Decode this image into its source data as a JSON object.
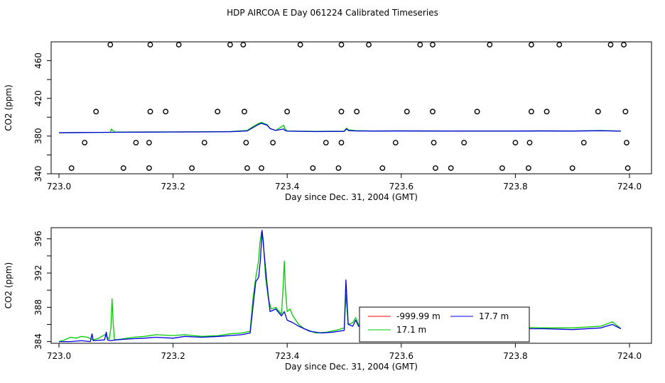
{
  "figure": {
    "title": "HDP AIRCOA E  Day 061224  Calibrated Timeseries"
  },
  "colors": {
    "red": "#ff0000",
    "green": "#00cc00",
    "blue": "#0000dd",
    "black": "#000000"
  },
  "chart_data": [
    {
      "type": "line+scatter",
      "ylabel": "CO2 (ppm)",
      "xlabel": "Day since Dec. 31, 2004 (GMT)",
      "xlim": [
        723.0,
        724.0
      ],
      "ylim": [
        340,
        480
      ],
      "xticks": [
        723.0,
        723.2,
        723.4,
        723.6,
        723.8,
        724.0
      ],
      "xtick_labels": [
        "723.0",
        "723.2",
        "723.4",
        "723.6",
        "723.8",
        "724.0"
      ],
      "yticks": [
        340,
        380,
        420,
        460
      ],
      "ytick_labels": [
        "340",
        "380",
        "420",
        "460"
      ],
      "extra_yticks": [
        360,
        400,
        440
      ],
      "scatter": {
        "levels": [
          477,
          406,
          373,
          346
        ],
        "x_477": [
          723.09,
          723.16,
          723.21,
          723.3,
          723.323,
          723.423,
          723.495,
          723.543,
          723.633,
          723.655,
          723.755,
          723.828,
          723.877,
          723.967,
          723.99
        ],
        "x_406": [
          723.065,
          723.16,
          723.187,
          723.278,
          723.325,
          723.4,
          723.495,
          723.522,
          723.61,
          723.655,
          723.733,
          723.828,
          723.855,
          723.945,
          723.993
        ],
        "x_373": [
          723.045,
          723.135,
          723.158,
          723.255,
          723.328,
          723.375,
          723.468,
          723.495,
          723.59,
          723.657,
          723.71,
          723.8,
          723.825,
          723.92,
          723.995
        ],
        "x_346": [
          723.022,
          723.113,
          723.158,
          723.233,
          723.33,
          723.355,
          723.445,
          723.49,
          723.567,
          723.66,
          723.687,
          723.777,
          723.823,
          723.9,
          723.997
        ]
      },
      "series": [
        {
          "color": "green",
          "x": [
            723.0,
            723.05,
            723.09,
            723.092,
            723.094,
            723.098,
            723.15,
            723.2,
            723.25,
            723.3,
            723.33,
            723.34,
            723.35,
            723.355,
            723.365,
            723.37,
            723.38,
            723.394,
            723.396,
            723.4,
            723.45,
            723.5,
            723.504,
            723.508,
            723.52,
            723.55,
            723.6,
            723.7,
            723.8,
            723.85,
            723.9,
            723.95,
            723.985
          ],
          "y": [
            383.5,
            383.8,
            384.0,
            387.5,
            386.0,
            384.3,
            384.4,
            384.5,
            384.6,
            384.8,
            386,
            390,
            393.5,
            394.5,
            392,
            388,
            386,
            391.5,
            388,
            385.5,
            385.0,
            385.2,
            388.5,
            386.5,
            385.8,
            385.5,
            385.6,
            385.4,
            385.5,
            385.6,
            385.5,
            385.9,
            385.3
          ]
        },
        {
          "color": "blue",
          "x": [
            723.0,
            723.05,
            723.1,
            723.15,
            723.2,
            723.25,
            723.3,
            723.33,
            723.34,
            723.35,
            723.355,
            723.365,
            723.37,
            723.38,
            723.394,
            723.396,
            723.4,
            723.45,
            723.5,
            723.504,
            723.508,
            723.52,
            723.55,
            723.6,
            723.7,
            723.8,
            723.85,
            723.9,
            723.95,
            723.985
          ],
          "y": [
            383.5,
            383.8,
            384.0,
            384.2,
            384.3,
            384.4,
            384.6,
            385.5,
            389,
            392.5,
            393.5,
            391.5,
            388,
            386,
            387.5,
            386,
            385.2,
            384.8,
            385.0,
            387.5,
            385.8,
            385.5,
            385.3,
            385.4,
            385.3,
            385.3,
            385.4,
            385.3,
            385.7,
            385.2
          ]
        }
      ]
    },
    {
      "type": "line",
      "ylabel": "CO2 (ppm)",
      "xlabel": "Day since Dec. 31, 2004 (GMT)",
      "xlim": [
        723.0,
        724.0
      ],
      "ylim": [
        383.8,
        397.3
      ],
      "xticks": [
        723.0,
        723.2,
        723.4,
        723.6,
        723.8,
        724.0
      ],
      "xtick_labels": [
        "723.0",
        "723.2",
        "723.4",
        "723.6",
        "723.8",
        "724.0"
      ],
      "yticks": [
        384,
        388,
        392,
        396
      ],
      "ytick_labels": [
        "384",
        "388",
        "392",
        "396"
      ],
      "extra_yticks": [
        386,
        390,
        394
      ],
      "legend": {
        "position": "bottom-right",
        "entries": [
          {
            "label": "-999.99 m",
            "color": "red"
          },
          {
            "label": "17.7 m",
            "color": "blue"
          },
          {
            "label": "17.1 m",
            "color": "green"
          }
        ]
      },
      "series": [
        {
          "color": "green",
          "x": [
            723.0,
            723.01,
            723.02,
            723.03,
            723.04,
            723.05,
            723.06,
            723.07,
            723.08,
            723.088,
            723.091,
            723.093,
            723.095,
            723.097,
            723.1,
            723.11,
            723.13,
            723.15,
            723.17,
            723.2,
            723.22,
            723.25,
            723.28,
            723.3,
            723.32,
            723.335,
            723.34,
            723.345,
            723.35,
            723.352,
            723.355,
            723.358,
            723.362,
            723.367,
            723.372,
            723.38,
            723.39,
            723.393,
            723.395,
            723.397,
            723.4,
            723.405,
            723.41,
            723.42,
            723.43,
            723.45,
            723.47,
            723.49,
            723.5,
            723.503,
            723.507,
            723.515,
            723.52,
            723.525,
            723.53,
            723.55,
            723.57,
            723.6,
            723.62,
            723.65,
            723.7,
            723.75,
            723.8,
            723.85,
            723.9,
            723.95,
            723.97,
            723.985
          ],
          "y": [
            384.0,
            384.2,
            384.5,
            384.4,
            384.6,
            384.5,
            384.2,
            384.4,
            384.8,
            384.3,
            385.6,
            389.0,
            386.2,
            384.3,
            384.2,
            384.3,
            384.5,
            384.6,
            384.8,
            384.7,
            384.8,
            384.6,
            384.7,
            384.9,
            385.0,
            385.2,
            389.0,
            391.5,
            393.5,
            395.5,
            396.8,
            396.0,
            391.5,
            389.0,
            387.8,
            388.0,
            387.2,
            390.5,
            393.4,
            390.0,
            387.5,
            387.8,
            387.0,
            386.0,
            385.5,
            385.0,
            385.1,
            385.4,
            385.6,
            389.5,
            386.0,
            386.2,
            386.8,
            386.0,
            385.8,
            385.6,
            386.0,
            386.2,
            385.8,
            385.6,
            385.6,
            385.9,
            385.7,
            385.6,
            385.6,
            385.8,
            386.3,
            385.5
          ]
        },
        {
          "color": "blue",
          "x": [
            723.0,
            723.02,
            723.04,
            723.055,
            723.058,
            723.06,
            723.08,
            723.083,
            723.085,
            723.09,
            723.1,
            723.12,
            723.15,
            723.17,
            723.2,
            723.22,
            723.25,
            723.28,
            723.3,
            723.32,
            723.335,
            723.34,
            723.345,
            723.35,
            723.353,
            723.356,
            723.36,
            723.365,
            723.37,
            723.38,
            723.39,
            723.395,
            723.4,
            723.41,
            723.42,
            723.44,
            723.46,
            723.48,
            723.5,
            723.503,
            723.507,
            723.515,
            723.52,
            723.525,
            723.53,
            723.55,
            723.58,
            723.6,
            723.62,
            723.65,
            723.7,
            723.75,
            723.8,
            723.85,
            723.9,
            723.95,
            723.97,
            723.985
          ],
          "y": [
            384.0,
            384.0,
            384.1,
            384.0,
            384.9,
            384.1,
            384.2,
            385.1,
            384.2,
            384.1,
            384.2,
            384.3,
            384.4,
            384.5,
            384.4,
            384.6,
            384.5,
            384.6,
            384.7,
            384.8,
            385.0,
            388.0,
            391.0,
            391.5,
            393.5,
            397.0,
            394.0,
            390.5,
            387.5,
            387.8,
            387.0,
            387.5,
            386.5,
            386.2,
            385.8,
            385.2,
            385.0,
            385.1,
            385.3,
            391.2,
            386.0,
            385.8,
            386.5,
            385.8,
            385.7,
            385.6,
            385.7,
            385.8,
            385.6,
            385.5,
            385.5,
            385.6,
            385.5,
            385.5,
            385.4,
            385.6,
            386.0,
            385.5
          ]
        }
      ]
    }
  ]
}
